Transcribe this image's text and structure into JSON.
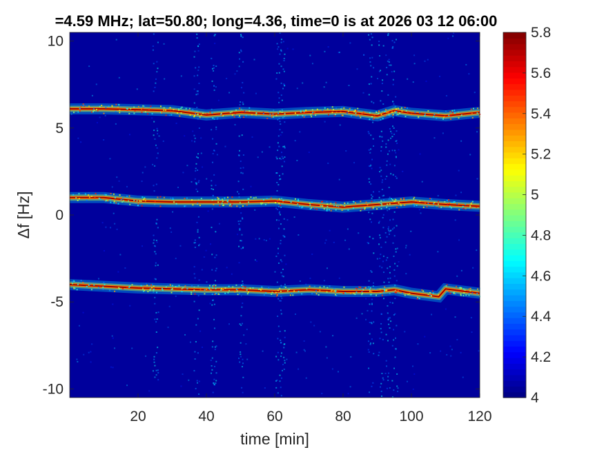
{
  "chart_data": {
    "type": "heatmap",
    "title": "=4.59 MHz;  lat=50.80; long=4.36, time=0 is at 2026 03 12 06:00",
    "xlabel": "time [min]",
    "ylabel": "Δf [Hz]",
    "xlim": [
      0,
      120
    ],
    "ylim": [
      -10.5,
      10.5
    ],
    "x_ticks": [
      20,
      40,
      60,
      80,
      100,
      120
    ],
    "y_ticks": [
      -10,
      -5,
      0,
      5,
      10
    ],
    "colorbar": {
      "colormap": "jet",
      "range": [
        4,
        5.8
      ],
      "ticks": [
        4,
        4.2,
        4.4,
        4.6,
        4.8,
        5,
        5.2,
        5.4,
        5.6,
        5.8
      ]
    },
    "background_value": 4.05,
    "grid": false,
    "traces": [
      {
        "name": "",
        "times": [
          0,
          10,
          20,
          30,
          40,
          50,
          60,
          70,
          80,
          90,
          95,
          100,
          110,
          120
        ],
        "freqs": [
          6.1,
          6.1,
          6.05,
          6.0,
          5.75,
          5.9,
          5.8,
          5.9,
          5.95,
          5.7,
          6.0,
          5.85,
          5.7,
          5.9
        ]
      },
      {
        "name": "",
        "times": [
          0,
          10,
          20,
          30,
          40,
          50,
          60,
          70,
          80,
          90,
          100,
          110,
          120
        ],
        "freqs": [
          1.0,
          1.0,
          0.8,
          0.75,
          0.75,
          0.75,
          0.8,
          0.6,
          0.45,
          0.6,
          0.75,
          0.6,
          0.5
        ]
      },
      {
        "name": "",
        "times": [
          0,
          10,
          20,
          30,
          40,
          50,
          60,
          70,
          80,
          90,
          95,
          100,
          108,
          110,
          120
        ],
        "freqs": [
          -4.0,
          -4.1,
          -4.2,
          -4.25,
          -4.3,
          -4.3,
          -4.4,
          -4.3,
          -4.4,
          -4.4,
          -4.3,
          -4.5,
          -4.7,
          -4.25,
          -4.5
        ]
      }
    ]
  }
}
